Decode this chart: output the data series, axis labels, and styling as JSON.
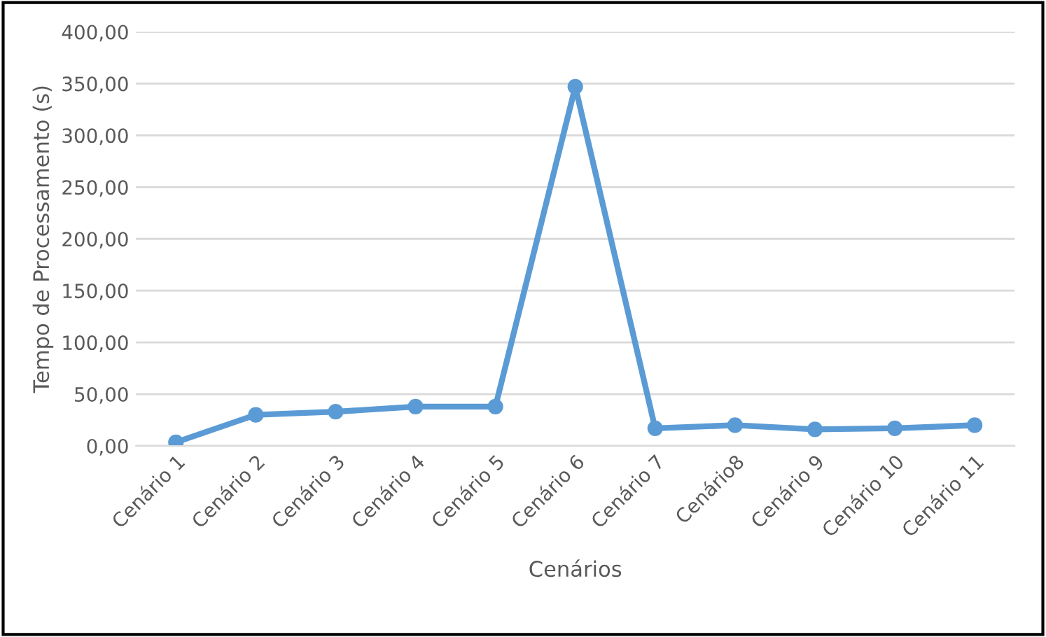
{
  "chart_data": {
    "type": "line",
    "xlabel": "Cenários",
    "ylabel": "Tempo de Processamento (s)",
    "categories": [
      "Cenário 1",
      "Cenário 2",
      "Cenário 3",
      "Cenário 4",
      "Cenário 5",
      "Cenário 6",
      "Cenário 7",
      "Cenário8",
      "Cenário 9",
      "Cenário 10",
      "Cenário 11"
    ],
    "series": [
      {
        "color": "#5b9bd5",
        "values": [
          3.5,
          30,
          33,
          38,
          38,
          347,
          17,
          20,
          16,
          17,
          20
        ]
      }
    ],
    "ylim": [
      0,
      400
    ],
    "yticks": [
      {
        "value": 0,
        "label": "0,00"
      },
      {
        "value": 50,
        "label": "50,00"
      },
      {
        "value": 100,
        "label": "100,00"
      },
      {
        "value": 150,
        "label": "150,00"
      },
      {
        "value": 200,
        "label": "200,00"
      },
      {
        "value": 250,
        "label": "250,00"
      },
      {
        "value": 300,
        "label": "300,00"
      },
      {
        "value": 350,
        "label": "350,00"
      },
      {
        "value": 400,
        "label": "400,00"
      }
    ],
    "grid": "y",
    "marker": "circle",
    "line_style": "solid",
    "legend": false
  }
}
